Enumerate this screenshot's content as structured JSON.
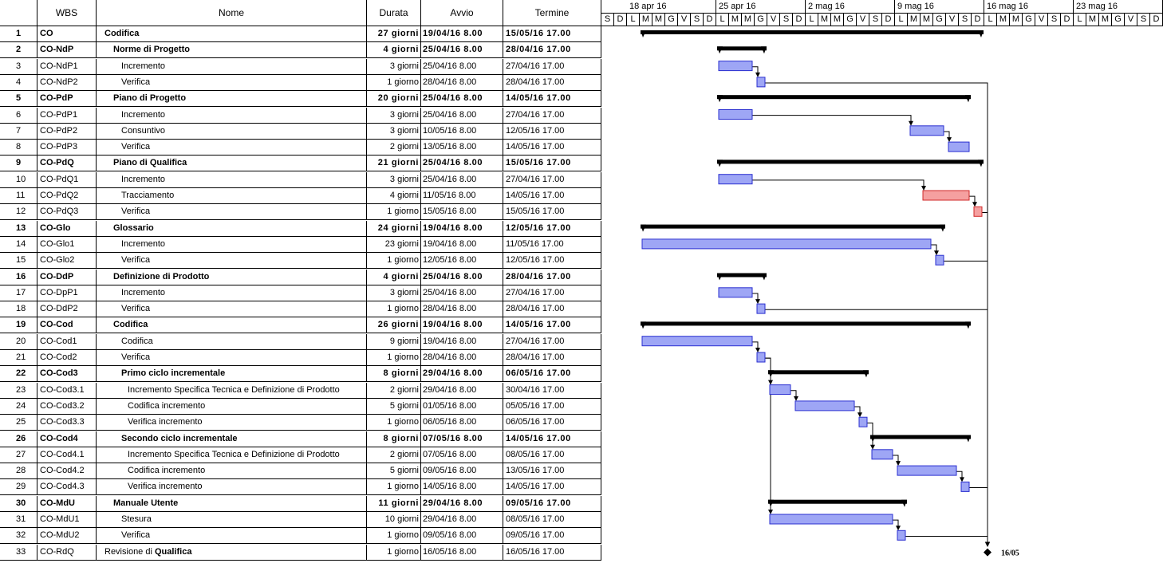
{
  "columns": {
    "id": "",
    "wbs": "WBS",
    "name": "Nome",
    "duration": "Durata",
    "start": "Avvio",
    "end": "Termine"
  },
  "weeks": [
    "18 apr 16",
    "25 apr 16",
    "2 mag 16",
    "9 mag 16",
    "16 mag 16",
    "23 mag 16"
  ],
  "day_letters": [
    "S",
    "D",
    "L",
    "M",
    "M",
    "G",
    "V",
    "S",
    "D",
    "L",
    "M",
    "M",
    "G",
    "V",
    "S",
    "D",
    "L",
    "M",
    "M",
    "G",
    "V",
    "S",
    "D",
    "L",
    "M",
    "M",
    "G",
    "V",
    "S",
    "D",
    "L",
    "M",
    "M",
    "G",
    "V",
    "S",
    "D",
    "L",
    "M",
    "M",
    "G",
    "V",
    "S",
    "D"
  ],
  "timeline_start": "2016-04-16",
  "milestone_label": "16/05",
  "colors": {
    "task": "#9ea6f5",
    "task_border": "#2a2fd0",
    "critical": "#f5a0a0",
    "critical_border": "#d02a2a",
    "summary": "#000000"
  },
  "tasks": [
    {
      "id": "1",
      "wbs": "CO",
      "name": "Codifica",
      "indent": 0,
      "duration": "27 giorni",
      "start": "19/04/16 8.00",
      "end": "15/05/16 17.00",
      "type": "summary",
      "s": "2016-04-19",
      "e": "2016-05-15"
    },
    {
      "id": "2",
      "wbs": "CO-NdP",
      "name": "Norme di Progetto",
      "indent": 1,
      "duration": "4 giorni",
      "start": "25/04/16 8.00",
      "end": "28/04/16 17.00",
      "type": "summary",
      "s": "2016-04-25",
      "e": "2016-04-28"
    },
    {
      "id": "3",
      "wbs": "CO-NdP1",
      "name": "Incremento",
      "indent": 2,
      "duration": "3 giorni",
      "start": "25/04/16 8.00",
      "end": "27/04/16 17.00",
      "type": "task",
      "s": "2016-04-25",
      "e": "2016-04-27"
    },
    {
      "id": "4",
      "wbs": "CO-NdP2",
      "name": "Verifica",
      "indent": 2,
      "duration": "1 giorno",
      "start": "28/04/16 8.00",
      "end": "28/04/16 17.00",
      "type": "task",
      "s": "2016-04-28",
      "e": "2016-04-28"
    },
    {
      "id": "5",
      "wbs": "CO-PdP",
      "name": "Piano di Progetto",
      "indent": 1,
      "duration": "20 giorni",
      "start": "25/04/16 8.00",
      "end": "14/05/16 17.00",
      "type": "summary",
      "s": "2016-04-25",
      "e": "2016-05-14"
    },
    {
      "id": "6",
      "wbs": "CO-PdP1",
      "name": "Incremento",
      "indent": 2,
      "duration": "3 giorni",
      "start": "25/04/16 8.00",
      "end": "27/04/16 17.00",
      "type": "task",
      "s": "2016-04-25",
      "e": "2016-04-27"
    },
    {
      "id": "7",
      "wbs": "CO-PdP2",
      "name": "Consuntivo",
      "indent": 2,
      "duration": "3 giorni",
      "start": "10/05/16 8.00",
      "end": "12/05/16 17.00",
      "type": "task",
      "s": "2016-05-10",
      "e": "2016-05-12"
    },
    {
      "id": "8",
      "wbs": "CO-PdP3",
      "name": "Verifica",
      "indent": 2,
      "duration": "2 giorni",
      "start": "13/05/16 8.00",
      "end": "14/05/16 17.00",
      "type": "task",
      "s": "2016-05-13",
      "e": "2016-05-14"
    },
    {
      "id": "9",
      "wbs": "CO-PdQ",
      "name": "Piano di Qualifica",
      "indent": 1,
      "duration": "21 giorni",
      "start": "25/04/16 8.00",
      "end": "15/05/16 17.00",
      "type": "summary",
      "s": "2016-04-25",
      "e": "2016-05-15"
    },
    {
      "id": "10",
      "wbs": "CO-PdQ1",
      "name": "Incremento",
      "indent": 2,
      "duration": "3 giorni",
      "start": "25/04/16 8.00",
      "end": "27/04/16 17.00",
      "type": "task",
      "s": "2016-04-25",
      "e": "2016-04-27"
    },
    {
      "id": "11",
      "wbs": "CO-PdQ2",
      "name": "Tracciamento",
      "indent": 2,
      "duration": "4 giorni",
      "start": "11/05/16 8.00",
      "end": "14/05/16 17.00",
      "type": "critical",
      "s": "2016-05-11",
      "e": "2016-05-14"
    },
    {
      "id": "12",
      "wbs": "CO-PdQ3",
      "name": "Verifica",
      "indent": 2,
      "duration": "1 giorno",
      "start": "15/05/16 8.00",
      "end": "15/05/16 17.00",
      "type": "critical",
      "s": "2016-05-15",
      "e": "2016-05-15"
    },
    {
      "id": "13",
      "wbs": "CO-Glo",
      "name": "Glossario",
      "indent": 1,
      "duration": "24 giorni",
      "start": "19/04/16 8.00",
      "end": "12/05/16 17.00",
      "type": "summary",
      "s": "2016-04-19",
      "e": "2016-05-12"
    },
    {
      "id": "14",
      "wbs": "CO-Glo1",
      "name": "Incremento",
      "indent": 2,
      "duration": "23 giorni",
      "start": "19/04/16 8.00",
      "end": "11/05/16 17.00",
      "type": "task",
      "s": "2016-04-19",
      "e": "2016-05-11"
    },
    {
      "id": "15",
      "wbs": "CO-Glo2",
      "name": "Verifica",
      "indent": 2,
      "duration": "1 giorno",
      "start": "12/05/16 8.00",
      "end": "12/05/16 17.00",
      "type": "task",
      "s": "2016-05-12",
      "e": "2016-05-12"
    },
    {
      "id": "16",
      "wbs": "CO-DdP",
      "name": "Definizione di Prodotto",
      "indent": 1,
      "duration": "4 giorni",
      "start": "25/04/16 8.00",
      "end": "28/04/16 17.00",
      "type": "summary",
      "s": "2016-04-25",
      "e": "2016-04-28"
    },
    {
      "id": "17",
      "wbs": "CO-DpP1",
      "name": "Incremento",
      "indent": 2,
      "duration": "3 giorni",
      "start": "25/04/16 8.00",
      "end": "27/04/16 17.00",
      "type": "task",
      "s": "2016-04-25",
      "e": "2016-04-27"
    },
    {
      "id": "18",
      "wbs": "CO-DdP2",
      "name": "Verifica",
      "indent": 2,
      "duration": "1 giorno",
      "start": "28/04/16 8.00",
      "end": "28/04/16 17.00",
      "type": "task",
      "s": "2016-04-28",
      "e": "2016-04-28"
    },
    {
      "id": "19",
      "wbs": "CO-Cod",
      "name": "Codifica",
      "indent": 1,
      "duration": "26 giorni",
      "start": "19/04/16 8.00",
      "end": "14/05/16 17.00",
      "type": "summary",
      "s": "2016-04-19",
      "e": "2016-05-14"
    },
    {
      "id": "20",
      "wbs": "CO-Cod1",
      "name": "Codifica",
      "indent": 2,
      "duration": "9 giorni",
      "start": "19/04/16 8.00",
      "end": "27/04/16 17.00",
      "type": "task",
      "s": "2016-04-19",
      "e": "2016-04-27"
    },
    {
      "id": "21",
      "wbs": "CO-Cod2",
      "name": "Verifica",
      "indent": 2,
      "duration": "1 giorno",
      "start": "28/04/16 8.00",
      "end": "28/04/16 17.00",
      "type": "task",
      "s": "2016-04-28",
      "e": "2016-04-28"
    },
    {
      "id": "22",
      "wbs": "CO-Cod3",
      "name": "Primo ciclo incrementale",
      "indent": 2,
      "duration": "8 giorni",
      "start": "29/04/16 8.00",
      "end": "06/05/16 17.00",
      "type": "summary",
      "s": "2016-04-29",
      "e": "2016-05-06"
    },
    {
      "id": "23",
      "wbs": "CO-Cod3.1",
      "name": "Incremento Specifica Tecnica e Definizione di Prodotto",
      "indent": 3,
      "duration": "2 giorni",
      "start": "29/04/16 8.00",
      "end": "30/04/16 17.00",
      "type": "task",
      "s": "2016-04-29",
      "e": "2016-04-30"
    },
    {
      "id": "24",
      "wbs": "CO-Cod3.2",
      "name": "Codifica incremento",
      "indent": 3,
      "duration": "5 giorni",
      "start": "01/05/16 8.00",
      "end": "05/05/16 17.00",
      "type": "task",
      "s": "2016-05-01",
      "e": "2016-05-05"
    },
    {
      "id": "25",
      "wbs": "CO-Cod3.3",
      "name": "Verifica incremento",
      "indent": 3,
      "duration": "1 giorno",
      "start": "06/05/16 8.00",
      "end": "06/05/16 17.00",
      "type": "task",
      "s": "2016-05-06",
      "e": "2016-05-06"
    },
    {
      "id": "26",
      "wbs": "CO-Cod4",
      "name": "Secondo ciclo incrementale",
      "indent": 2,
      "duration": "8 giorni",
      "start": "07/05/16 8.00",
      "end": "14/05/16 17.00",
      "type": "summary",
      "s": "2016-05-07",
      "e": "2016-05-14"
    },
    {
      "id": "27",
      "wbs": "CO-Cod4.1",
      "name": "Incremento Specifica Tecnica e Definizione di Prodotto",
      "indent": 3,
      "duration": "2 giorni",
      "start": "07/05/16 8.00",
      "end": "08/05/16 17.00",
      "type": "task",
      "s": "2016-05-07",
      "e": "2016-05-08"
    },
    {
      "id": "28",
      "wbs": "CO-Cod4.2",
      "name": "Codifica incremento",
      "indent": 3,
      "duration": "5 giorni",
      "start": "09/05/16 8.00",
      "end": "13/05/16 17.00",
      "type": "task",
      "s": "2016-05-09",
      "e": "2016-05-13"
    },
    {
      "id": "29",
      "wbs": "CO-Cod4.3",
      "name": "Verifica incremento",
      "indent": 3,
      "duration": "1 giorno",
      "start": "14/05/16 8.00",
      "end": "14/05/16 17.00",
      "type": "task",
      "s": "2016-05-14",
      "e": "2016-05-14"
    },
    {
      "id": "30",
      "wbs": "CO-MdU",
      "name": "Manuale Utente",
      "indent": 1,
      "duration": "11 giorni",
      "start": "29/04/16 8.00",
      "end": "09/05/16 17.00",
      "type": "summary",
      "s": "2016-04-29",
      "e": "2016-05-09"
    },
    {
      "id": "31",
      "wbs": "CO-MdU1",
      "name": "Stesura",
      "indent": 2,
      "duration": "10 giorni",
      "start": "29/04/16 8.00",
      "end": "08/05/16 17.00",
      "type": "task",
      "s": "2016-04-29",
      "e": "2016-05-08"
    },
    {
      "id": "32",
      "wbs": "CO-MdU2",
      "name": "Verifica",
      "indent": 2,
      "duration": "1 giorno",
      "start": "09/05/16 8.00",
      "end": "09/05/16 17.00",
      "type": "task",
      "s": "2016-05-09",
      "e": "2016-05-09"
    },
    {
      "id": "33",
      "wbs": "CO-RdQ",
      "name": "Revisione di ",
      "name_bold": "Qualifica",
      "indent": 0,
      "duration": "1 giorno",
      "start": "16/05/16 8.00",
      "end": "16/05/16 17.00",
      "type": "milestone",
      "s": "2016-05-16",
      "e": "2016-05-16"
    }
  ]
}
